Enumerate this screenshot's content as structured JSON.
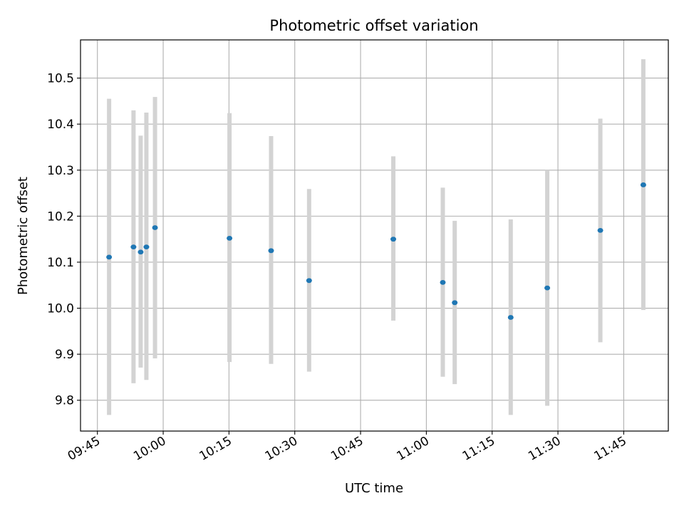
{
  "chart_data": {
    "type": "scatter",
    "title": "Photometric offset variation",
    "xlabel": "UTC time",
    "ylabel": "Photometric offset",
    "xlim": [
      "09:41:09",
      "11:55:10"
    ],
    "ylim": [
      9.733,
      10.583
    ],
    "grid": true,
    "colors": {
      "point": "#1f77b4",
      "errorbar": "#d3d3d3",
      "grid": "#b0b0b0"
    },
    "x_ticks": [
      "09:45",
      "10:00",
      "10:15",
      "10:30",
      "10:45",
      "11:00",
      "11:15",
      "11:30",
      "11:45"
    ],
    "y_ticks": [
      "9.8",
      "9.9",
      "10.0",
      "10.1",
      "10.2",
      "10.3",
      "10.4",
      "10.5"
    ],
    "points": [
      {
        "x": "09:47:40",
        "y": 10.111,
        "err_low": 9.768,
        "err_high": 10.455
      },
      {
        "x": "09:53:14",
        "y": 10.133,
        "err_low": 9.837,
        "err_high": 10.43
      },
      {
        "x": "09:54:52",
        "y": 10.122,
        "err_low": 9.871,
        "err_high": 10.375
      },
      {
        "x": "09:56:10",
        "y": 10.133,
        "err_low": 9.844,
        "err_high": 10.425
      },
      {
        "x": "09:58:08",
        "y": 10.175,
        "err_low": 9.891,
        "err_high": 10.459
      },
      {
        "x": "10:15:07",
        "y": 10.152,
        "err_low": 9.883,
        "err_high": 10.424
      },
      {
        "x": "10:24:36",
        "y": 10.125,
        "err_low": 9.879,
        "err_high": 10.374
      },
      {
        "x": "10:33:16",
        "y": 10.06,
        "err_low": 9.862,
        "err_high": 10.259
      },
      {
        "x": "10:52:28",
        "y": 10.15,
        "err_low": 9.973,
        "err_high": 10.33
      },
      {
        "x": "11:03:45",
        "y": 10.056,
        "err_low": 9.851,
        "err_high": 10.262
      },
      {
        "x": "11:06:28",
        "y": 10.012,
        "err_low": 9.835,
        "err_high": 10.19
      },
      {
        "x": "11:19:14",
        "y": 9.98,
        "err_low": 9.768,
        "err_high": 10.193
      },
      {
        "x": "11:27:34",
        "y": 10.044,
        "err_low": 9.788,
        "err_high": 10.3
      },
      {
        "x": "11:39:40",
        "y": 10.169,
        "err_low": 9.926,
        "err_high": 10.412
      },
      {
        "x": "11:49:28",
        "y": 10.268,
        "err_low": 9.996,
        "err_high": 10.541
      }
    ]
  }
}
